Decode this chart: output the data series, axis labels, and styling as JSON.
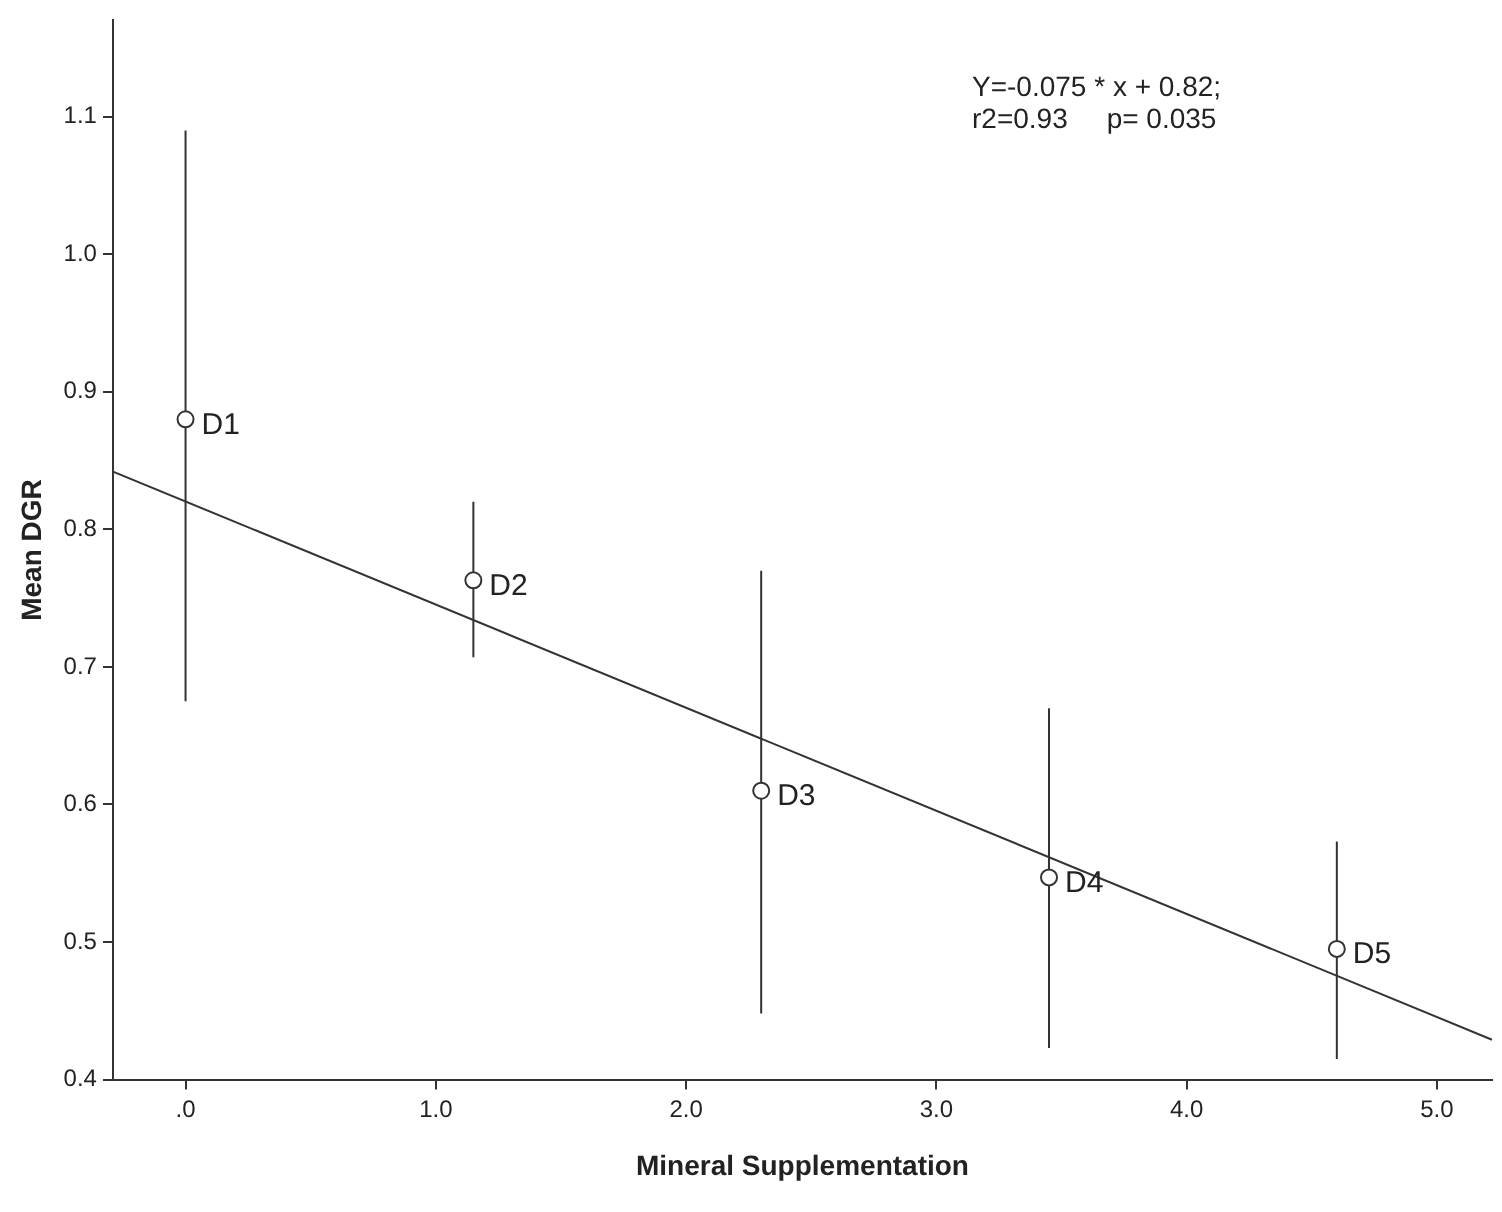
{
  "chart_data": {
    "type": "scatter",
    "xlabel": "Mineral Supplementation",
    "ylabel": "Mean DGR",
    "x": [
      0,
      1.15,
      2.3,
      3.45,
      4.6
    ],
    "series": [
      {
        "type": "scatter",
        "color": "#333333",
        "marker": "circle",
        "values": [
          0.88,
          0.763,
          0.61,
          0.547,
          0.495
        ],
        "errors": [
          [
            0.675,
            1.09
          ],
          [
            0.707,
            0.82
          ],
          [
            0.448,
            0.77
          ],
          [
            0.423,
            0.67
          ],
          [
            0.415,
            0.573
          ]
        ]
      },
      {
        "type": "line",
        "color": "#333333",
        "marker": "none",
        "line_style": "solid",
        "x": [
          -0.29,
          5.22
        ],
        "values": [
          0.842,
          0.429
        ]
      }
    ],
    "xlim": [
      -0.29,
      5.22
    ],
    "ylim": [
      0.4,
      1.17
    ],
    "xticks": [
      {
        "value": 0,
        "label": ".0"
      },
      {
        "value": 1,
        "label": "1.0"
      },
      {
        "value": 2,
        "label": "2.0"
      },
      {
        "value": 3,
        "label": "3.0"
      },
      {
        "value": 4,
        "label": "4.0"
      },
      {
        "value": 5,
        "label": "5.0"
      }
    ],
    "yticks": [
      {
        "value": 0.4,
        "label": "0.4"
      },
      {
        "value": 0.5,
        "label": "0.5"
      },
      {
        "value": 0.6,
        "label": "0.6"
      },
      {
        "value": 0.7,
        "label": "0.7"
      },
      {
        "value": 0.8,
        "label": "0.8"
      },
      {
        "value": 0.9,
        "label": "0.9"
      },
      {
        "value": 1.0,
        "label": "1.0"
      },
      {
        "value": 1.1,
        "label": "1.1"
      }
    ],
    "grid": false,
    "legend": false,
    "annotations": [
      "Y=-0.075 * x + 0.82;",
      "r2=0.93     p= 0.035",
      {
        "text": "D1",
        "x": 0,
        "y": 0.88
      },
      {
        "text": "D2",
        "x": 1.15,
        "y": 0.763
      },
      {
        "text": "D3",
        "x": 2.3,
        "y": 0.61
      },
      {
        "text": "D4",
        "x": 3.45,
        "y": 0.547
      },
      {
        "text": "D5",
        "x": 4.6,
        "y": 0.495
      }
    ]
  }
}
